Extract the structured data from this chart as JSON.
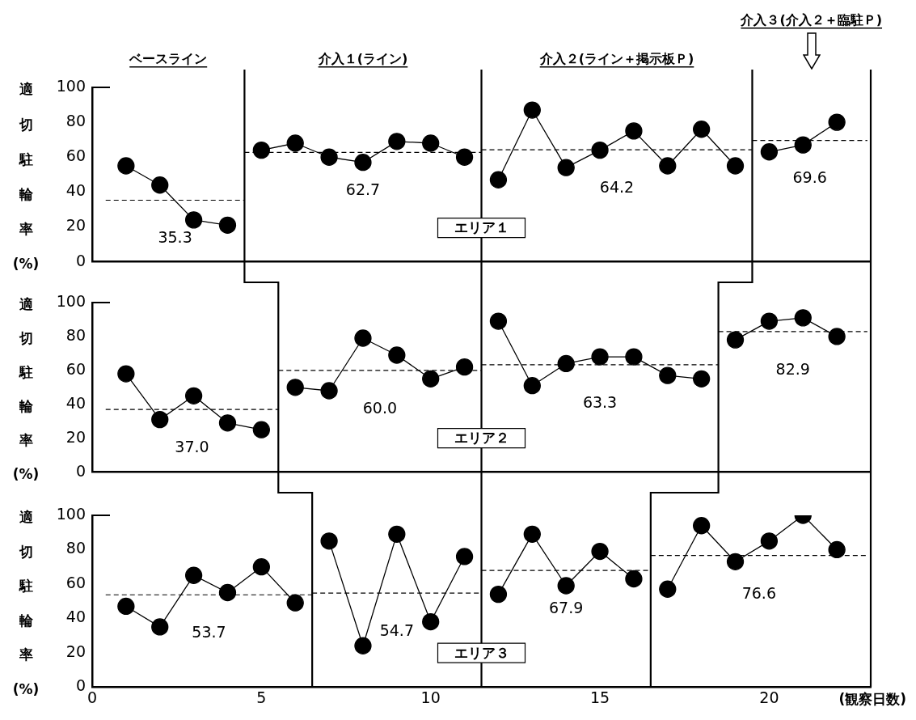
{
  "chart_data": [
    {
      "type": "line",
      "title": "エリア１",
      "ylabel": "適切駐輪率(%)",
      "xlim": [
        0,
        23
      ],
      "ylim": [
        0,
        100
      ],
      "yticks": [
        0,
        20,
        40,
        60,
        80,
        100
      ],
      "tick_labels": "y",
      "marker": "circle",
      "line_style": "solid",
      "series": [
        {
          "color": "#000000",
          "x": [
            1,
            2,
            3,
            4
          ],
          "values": [
            55,
            44,
            24,
            21
          ]
        },
        {
          "color": "#000000",
          "x": [
            5,
            6,
            7,
            8,
            9,
            10,
            11
          ],
          "values": [
            64,
            68,
            60,
            57,
            69,
            68,
            60
          ]
        },
        {
          "color": "#000000",
          "x": [
            12,
            13,
            14,
            15,
            16,
            17,
            18,
            19
          ],
          "values": [
            47,
            87,
            54,
            64,
            75,
            55,
            76,
            55
          ]
        },
        {
          "color": "#000000",
          "x": [
            20,
            21,
            22
          ],
          "values": [
            63,
            67,
            80
          ]
        },
        {
          "type": "line",
          "color": "#000000",
          "marker": "none",
          "line_style": "dashed",
          "x": [
            0.4,
            4.5
          ],
          "values": [
            35.3,
            35.3
          ]
        },
        {
          "type": "line",
          "color": "#000000",
          "marker": "none",
          "line_style": "dashed",
          "x": [
            4.5,
            11.5
          ],
          "values": [
            62.7,
            62.7
          ]
        },
        {
          "type": "line",
          "color": "#000000",
          "marker": "none",
          "line_style": "dashed",
          "x": [
            11.5,
            19.5
          ],
          "values": [
            64.2,
            64.2
          ]
        },
        {
          "type": "line",
          "color": "#000000",
          "marker": "none",
          "line_style": "dashed",
          "x": [
            19.5,
            22.9
          ],
          "values": [
            69.6,
            69.6
          ]
        }
      ],
      "ref_lines": [
        {
          "axis": "x",
          "value": 4.5
        },
        {
          "axis": "x",
          "value": 11.5
        },
        {
          "axis": "x",
          "value": 19.5
        }
      ],
      "annotations": [
        "ベースライン",
        "介入１(ライン)",
        "介入２(ライン＋掲示板Ｐ)",
        "介入３(介入２＋臨駐Ｐ)",
        "35.3",
        "62.7",
        "64.2",
        "69.6"
      ]
    },
    {
      "type": "line",
      "title": "エリア２",
      "ylabel": "適切駐輪率(%)",
      "xlim": [
        0,
        23
      ],
      "ylim": [
        0,
        100
      ],
      "yticks": [
        0,
        20,
        40,
        60,
        80,
        100
      ],
      "tick_labels": "y",
      "marker": "circle",
      "line_style": "solid",
      "series": [
        {
          "color": "#000000",
          "x": [
            1,
            2,
            3,
            4,
            5
          ],
          "values": [
            58,
            31,
            45,
            29,
            25
          ]
        },
        {
          "color": "#000000",
          "x": [
            6,
            7,
            8,
            9,
            10,
            11
          ],
          "values": [
            50,
            48,
            79,
            69,
            55,
            62
          ]
        },
        {
          "color": "#000000",
          "x": [
            12,
            13,
            14,
            15,
            16,
            17,
            18
          ],
          "values": [
            89,
            51,
            64,
            68,
            68,
            57,
            55
          ]
        },
        {
          "color": "#000000",
          "x": [
            19,
            20,
            21,
            22
          ],
          "values": [
            78,
            89,
            91,
            80
          ]
        },
        {
          "type": "line",
          "color": "#000000",
          "marker": "none",
          "line_style": "dashed",
          "x": [
            0.4,
            5.5
          ],
          "values": [
            37,
            37
          ]
        },
        {
          "type": "line",
          "color": "#000000",
          "marker": "none",
          "line_style": "dashed",
          "x": [
            5.5,
            11.5
          ],
          "values": [
            60,
            60
          ]
        },
        {
          "type": "line",
          "color": "#000000",
          "marker": "none",
          "line_style": "dashed",
          "x": [
            11.5,
            18.5
          ],
          "values": [
            63.3,
            63.3
          ]
        },
        {
          "type": "line",
          "color": "#000000",
          "marker": "none",
          "line_style": "dashed",
          "x": [
            18.5,
            22.9
          ],
          "values": [
            82.9,
            82.9
          ]
        }
      ],
      "ref_lines": [
        {
          "axis": "x",
          "value": 5.5
        },
        {
          "axis": "x",
          "value": 11.5
        },
        {
          "axis": "x",
          "value": 18.5
        }
      ],
      "annotations": [
        "37.0",
        "60.0",
        "63.3",
        "82.9"
      ]
    },
    {
      "type": "line",
      "title": "エリア３",
      "ylabel": "適切駐輪率(%)",
      "xlabel": "(観察日数)",
      "xlim": [
        0,
        23
      ],
      "ylim": [
        0,
        100
      ],
      "xticks": [
        0,
        5,
        10,
        15,
        20
      ],
      "yticks": [
        0,
        20,
        40,
        60,
        80,
        100
      ],
      "marker": "circle",
      "line_style": "solid",
      "series": [
        {
          "color": "#000000",
          "x": [
            1,
            2,
            3,
            4,
            5,
            6
          ],
          "values": [
            47,
            35,
            65,
            55,
            70,
            49
          ]
        },
        {
          "color": "#000000",
          "x": [
            7,
            8,
            9,
            10,
            11
          ],
          "values": [
            85,
            24,
            89,
            38,
            76
          ]
        },
        {
          "color": "#000000",
          "x": [
            12,
            13,
            14,
            15,
            16
          ],
          "values": [
            54,
            89,
            59,
            79,
            63
          ]
        },
        {
          "color": "#000000",
          "x": [
            17,
            18,
            19,
            20,
            21,
            22
          ],
          "values": [
            57,
            94,
            73,
            85,
            100,
            80
          ]
        },
        {
          "type": "line",
          "color": "#000000",
          "marker": "none",
          "line_style": "dashed",
          "x": [
            0.4,
            6.5
          ],
          "values": [
            53.7,
            53.7
          ]
        },
        {
          "type": "line",
          "color": "#000000",
          "marker": "none",
          "line_style": "dashed",
          "x": [
            6.5,
            11.5
          ],
          "values": [
            54.7,
            54.7
          ]
        },
        {
          "type": "line",
          "color": "#000000",
          "marker": "none",
          "line_style": "dashed",
          "x": [
            11.5,
            16.5
          ],
          "values": [
            67.9,
            67.9
          ]
        },
        {
          "type": "line",
          "color": "#000000",
          "marker": "none",
          "line_style": "dashed",
          "x": [
            16.5,
            22.9
          ],
          "values": [
            76.6,
            76.6
          ]
        }
      ],
      "ref_lines": [
        {
          "axis": "x",
          "value": 6.5
        },
        {
          "axis": "x",
          "value": 11.5
        },
        {
          "axis": "x",
          "value": 16.5
        }
      ],
      "annotations": [
        "53.7",
        "54.7",
        "67.9",
        "76.6"
      ]
    }
  ]
}
